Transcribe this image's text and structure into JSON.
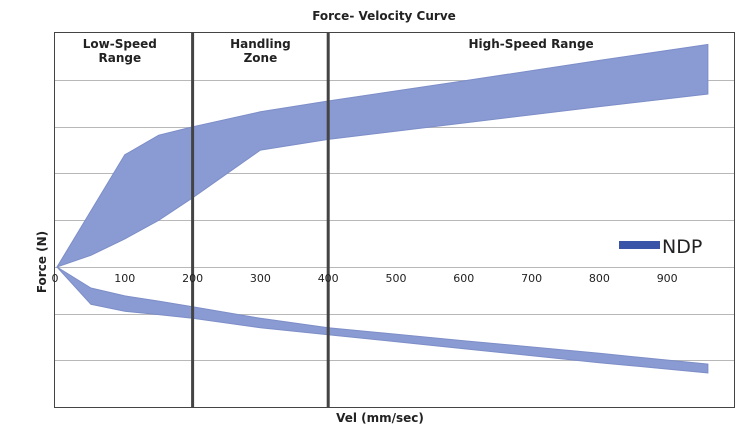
{
  "chart_data": {
    "type": "area",
    "title": "Force- Velocity Curve",
    "xlabel": "Vel (mm/sec)",
    "ylabel": "Force (N)",
    "xlim": [
      0,
      1000
    ],
    "xticks": [
      0,
      100,
      200,
      300,
      400,
      500,
      600,
      700,
      800,
      900
    ],
    "xtick_labels": [
      "0",
      "100",
      "200",
      "300",
      "400",
      "500",
      "600",
      "700",
      "800",
      "900"
    ],
    "ylim": [
      -5,
      5
    ],
    "gridlines_y": [
      -5,
      -4,
      -3,
      -2,
      -1,
      0,
      1,
      2,
      3,
      4,
      5
    ],
    "grid": true,
    "legend": {
      "placement": "right",
      "entries": [
        {
          "name": "NDP",
          "color": "#3a55a8"
        }
      ]
    },
    "regions": [
      {
        "label": "Low-Speed\nRange",
        "x_start": 0,
        "x_end": 200
      },
      {
        "label": "Handling\nZone",
        "x_start": 200,
        "x_end": 400
      },
      {
        "label": "High-Speed Range",
        "x_start": 400,
        "x_end": 1000
      }
    ],
    "region_dividers_x": [
      200,
      400
    ],
    "series": [
      {
        "name": "NDP",
        "color": "#8a9ad2",
        "bands": [
          {
            "part": "rebound",
            "x": [
              0,
              50,
              100,
              150,
              200,
              300,
              400,
              600,
              800,
              960
            ],
            "upper": [
              0,
              1.2,
              2.4,
              2.82,
              3.0,
              3.32,
              3.55,
              3.98,
              4.42,
              4.76
            ],
            "lower": [
              0,
              0.25,
              0.6,
              1.0,
              1.48,
              2.5,
              2.73,
              3.08,
              3.43,
              3.7
            ]
          },
          {
            "part": "compression",
            "x": [
              0,
              50,
              100,
              150,
              200,
              300,
              400,
              600,
              800,
              960
            ],
            "upper": [
              0,
              -0.45,
              -0.62,
              -0.73,
              -0.85,
              -1.1,
              -1.3,
              -1.58,
              -1.85,
              -2.08
            ],
            "lower": [
              0,
              -0.8,
              -0.95,
              -1.02,
              -1.1,
              -1.3,
              -1.45,
              -1.75,
              -2.05,
              -2.27
            ]
          }
        ]
      }
    ]
  }
}
